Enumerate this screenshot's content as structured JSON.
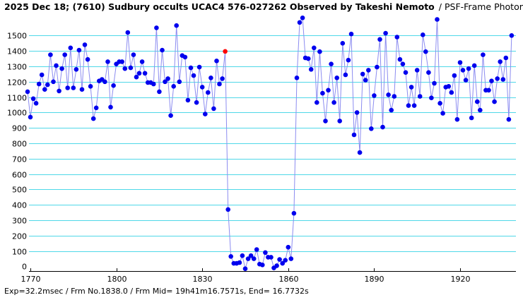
{
  "title_main": "2025 Dec 18; (7610) Sudbury occults UCAC4 576-027262 Observed by Takeshi Nemoto",
  "title_sub": "/ PSF-Frame Photometry /",
  "footer": "Exp=32.2msec / Frm No.1838.0 / Frm Mid= 19h41m16.7571s, End= 16.7732s",
  "colors": {
    "grid": "#4fd8e8",
    "line": "#8c8cf0",
    "point": "#0000ee",
    "highlight": "#ff0000"
  },
  "chart_data": {
    "type": "line",
    "x_ticks": [
      1770,
      1800,
      1830,
      1860,
      1890,
      1920
    ],
    "y_ticks": [
      0,
      100,
      200,
      300,
      400,
      500,
      600,
      700,
      800,
      900,
      1000,
      1100,
      1200,
      1300,
      1400,
      1500
    ],
    "xlim": [
      1769.5,
      1939.5
    ],
    "ylim": [
      -30,
      1630
    ],
    "grid": "horizontal",
    "highlight_point": {
      "x": 1838,
      "y": 1397
    },
    "series": [
      {
        "x_start": 1769,
        "values": [
          1135,
          970,
          1090,
          1060,
          1185,
          1245,
          1150,
          1180,
          1375,
          1200,
          1305,
          1140,
          1285,
          1375,
          1160,
          1420,
          1160,
          1280,
          1405,
          1150,
          1440,
          1345,
          1170,
          960,
          1030,
          1205,
          1215,
          1200,
          1330,
          1035,
          1175,
          1315,
          1330,
          1330,
          1285,
          1520,
          1290,
          1375,
          1230,
          1255,
          1330,
          1255,
          1195,
          1195,
          1185,
          1550,
          1135,
          1405,
          1200,
          1220,
          980,
          1170,
          1565,
          1200,
          1370,
          1360,
          1080,
          1290,
          1240,
          1065,
          1295,
          1165,
          990,
          1130,
          1225,
          1025,
          1335,
          1185,
          1220,
          1397,
          370,
          65,
          20,
          20,
          25,
          70,
          -15,
          50,
          70,
          50,
          110,
          15,
          10,
          90,
          60,
          60,
          -10,
          5,
          45,
          20,
          40,
          125,
          50,
          345,
          1225,
          1585,
          1615,
          1355,
          1350,
          1280,
          1420,
          1065,
          1395,
          1125,
          945,
          1145,
          1315,
          1065,
          1225,
          945,
          1450,
          1245,
          1340,
          1510,
          855,
          1000,
          740,
          1250,
          1210,
          1275,
          895,
          1110,
          1295,
          1475,
          905,
          1515,
          1115,
          1015,
          1105,
          1490,
          1345,
          1315,
          1260,
          1045,
          1165,
          1045,
          1275,
          1105,
          1505,
          1395,
          1260,
          1095,
          1190,
          1605,
          1060,
          995,
          1165,
          1170,
          1130,
          1240,
          955,
          1325,
          1275,
          1210,
          1285,
          965,
          1305,
          1070,
          1015,
          1375,
          1145,
          1145,
          1205,
          1070,
          1220,
          1330,
          1215,
          1355,
          955,
          1500
        ]
      }
    ]
  }
}
